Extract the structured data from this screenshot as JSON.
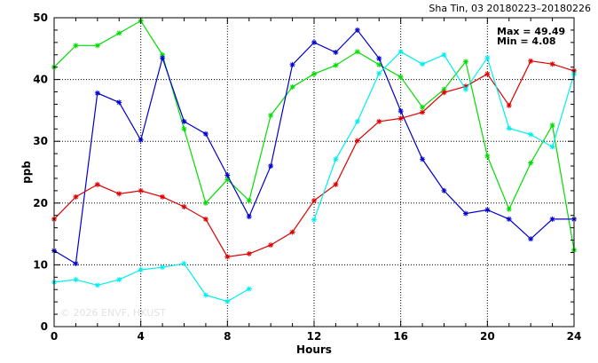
{
  "chart_data": {
    "type": "line",
    "title": "Sha Tin, 03 20180223–20180226",
    "xlabel": "Hours",
    "ylabel": "ppb",
    "xlim": [
      0,
      24
    ],
    "ylim": [
      0,
      50
    ],
    "xticks": [
      0,
      4,
      8,
      12,
      16,
      20,
      24
    ],
    "yticks": [
      0,
      10,
      20,
      30,
      40,
      50
    ],
    "grid": true,
    "stats": {
      "max_text": "Max = 49.49",
      "min_text": "Min =  4.08"
    },
    "watermark": "© 2026  ENVF, HKUST",
    "x": [
      0,
      1,
      2,
      3,
      4,
      5,
      6,
      7,
      8,
      9,
      10,
      11,
      12,
      13,
      14,
      15,
      16,
      17,
      18,
      19,
      20,
      21,
      22,
      23,
      24
    ],
    "series": [
      {
        "color": "#00dd00",
        "values": [
          42.0,
          45.5,
          45.5,
          47.5,
          49.49,
          44.0,
          32.0,
          20.0,
          23.8,
          20.4,
          34.2,
          38.8,
          40.9,
          42.3,
          44.5,
          42.4,
          40.4,
          35.5,
          38.4,
          42.9,
          27.6,
          19.0,
          26.5,
          32.6,
          12.4
        ]
      },
      {
        "color": "#0000cc",
        "values": [
          12.3,
          10.2,
          37.8,
          36.3,
          30.2,
          43.5,
          33.2,
          31.2,
          24.5,
          17.8,
          26.0,
          42.4,
          46.0,
          44.4,
          48.0,
          43.4,
          34.9,
          27.1,
          22.0,
          18.3,
          18.9,
          17.4,
          14.2,
          17.4,
          17.4
        ]
      },
      {
        "color": "#dd0000",
        "values": [
          17.4,
          21.0,
          23.0,
          21.5,
          22.0,
          21.0,
          19.4,
          17.4,
          11.3,
          11.8,
          13.2,
          15.3,
          20.4,
          23.0,
          30.1,
          33.2,
          33.7,
          34.7,
          37.9,
          38.9,
          40.9,
          35.8,
          43.0,
          42.5,
          41.4
        ]
      },
      {
        "color": "#00eeee",
        "values": [
          7.2,
          7.6,
          6.7,
          7.6,
          9.2,
          9.6,
          10.2,
          5.1,
          4.08,
          6.1,
          null,
          null,
          17.3,
          27.1,
          33.2,
          41.0,
          44.5,
          42.5,
          44.0,
          38.4,
          43.5,
          32.1,
          31.1,
          29.1,
          40.9
        ]
      }
    ]
  }
}
